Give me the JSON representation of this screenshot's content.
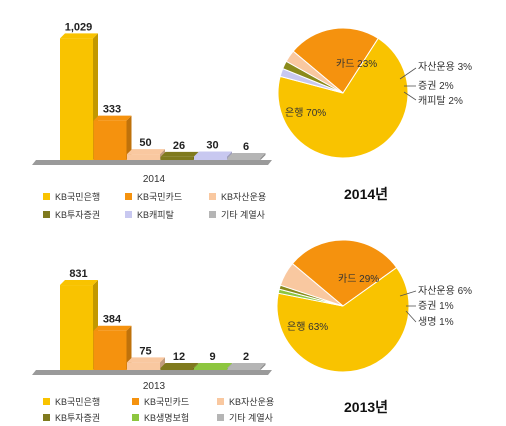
{
  "chart_data": [
    {
      "type": "bar",
      "xlabel": "2014",
      "categories": [
        "KB국민은행",
        "KB국민카드",
        "KB자산운용",
        "KB투자증권",
        "KB캐피탈",
        "기타 계열사"
      ],
      "values": [
        1029,
        333,
        50,
        26,
        30,
        6
      ],
      "value_labels": [
        "1,029",
        "333",
        "50",
        "26",
        "30",
        "6"
      ],
      "colors": [
        "#F9C300",
        "#F5920E",
        "#F9C8A0",
        "#7F7A1E",
        "#C8C8F0",
        "#B5B5B5"
      ],
      "ylim": [
        0,
        1100
      ],
      "grid": false,
      "legend": "bottom"
    },
    {
      "type": "pie",
      "title": "2014년",
      "labels": [
        "은행",
        "카드",
        "자산운용",
        "증권",
        "캐피탈"
      ],
      "values": [
        70,
        23,
        3,
        2,
        2
      ],
      "display": [
        "은행 70%",
        "카드 23%",
        "자산운용 3%",
        "증권 2%",
        "캐피탈 2%"
      ],
      "colors": [
        "#F9C300",
        "#F5920E",
        "#F9C8A0",
        "#8A8A1A",
        "#C8C8F0"
      ]
    },
    {
      "type": "bar",
      "xlabel": "2013",
      "categories": [
        "KB국민은행",
        "KB국민카드",
        "KB자산운용",
        "KB투자증권",
        "KB생명보험",
        "기타 계열사"
      ],
      "values": [
        831,
        384,
        75,
        12,
        9,
        2
      ],
      "value_labels": [
        "831",
        "384",
        "75",
        "12",
        "9",
        "2"
      ],
      "colors": [
        "#F9C300",
        "#F5920E",
        "#F9C8A0",
        "#7F7A1E",
        "#8DC63F",
        "#B5B5B5"
      ],
      "ylim": [
        0,
        900
      ],
      "grid": false,
      "legend": "bottom"
    },
    {
      "type": "pie",
      "title": "2013년",
      "labels": [
        "은행",
        "카드",
        "자산운용",
        "증권",
        "생명"
      ],
      "values": [
        63,
        29,
        6,
        1,
        1
      ],
      "display": [
        "은행 63%",
        "카드 29%",
        "자산운용 6%",
        "증권 1%",
        "생명 1%"
      ],
      "colors": [
        "#F9C300",
        "#F5920E",
        "#F9C8A0",
        "#8A8A1A",
        "#8DC63F"
      ]
    }
  ]
}
